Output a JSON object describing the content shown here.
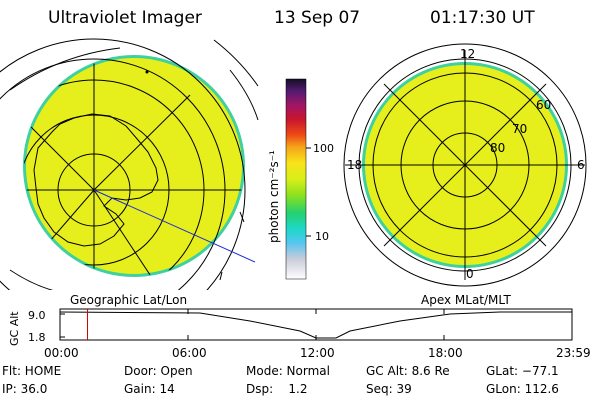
{
  "header": {
    "title": "Ultraviolet Imager",
    "date": "13 Sep 07",
    "time": "01:17:30 UT"
  },
  "colorbar": {
    "unit_label": "photon cm⁻²s⁻¹",
    "ticks": [
      "100",
      "10"
    ]
  },
  "geo_panel": {
    "label": "Geographic Lat/Lon"
  },
  "mlt_panel": {
    "label": "Apex MLat/MLT",
    "clock_labels": {
      "top": "12",
      "left": "18",
      "right": "6",
      "bottom": "0"
    },
    "lat_labels": [
      "60",
      "70",
      "80"
    ]
  },
  "altitude_plot": {
    "ylabel": "GC Alt",
    "yticks": [
      "9.0",
      "1.8"
    ],
    "xticks": [
      "00:00",
      "06:00",
      "12:00",
      "18:00",
      "23:59"
    ],
    "marker_time_hours": 1.29,
    "marker_color": "#cc0000"
  },
  "status": {
    "row1": {
      "flt": "Flt: HOME",
      "door": "Door: Open",
      "mode": "Mode: Normal",
      "gcalt": "GC Alt: 8.6 Re",
      "glat": "GLat: −77.1"
    },
    "row2": {
      "ip": "IP: 36.0",
      "gain": "Gain: 14",
      "dsp": "Dsp:    1.2",
      "seq": "Seq: 39",
      "glon": "GLon: 112.6"
    }
  },
  "colors": {
    "image_fill": "#e6ef1c",
    "image_rim": "#3fd0a0",
    "grid_line": "#000000",
    "pass_line": "#1b2bd8"
  }
}
